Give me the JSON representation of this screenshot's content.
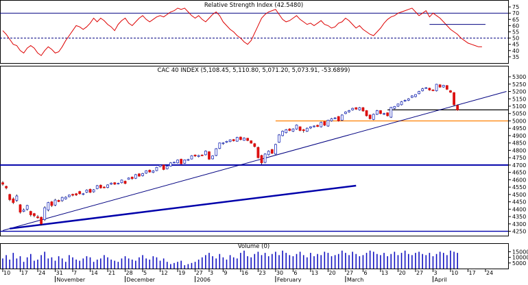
{
  "chart_data": [
    {
      "type": "line",
      "title": "Relative Strength Index (42.5480)",
      "ylim": [
        30,
        80
      ],
      "yticks": [
        35,
        40,
        45,
        50,
        55,
        60,
        65,
        70,
        75
      ],
      "reference_lines": [
        70,
        50
      ],
      "annotation_segment": {
        "from_index": 122,
        "to_index": 138,
        "y": 61
      },
      "colors": {
        "line": "#dd0000",
        "reference": "#000080",
        "annotation": "#000080"
      },
      "values": [
        56,
        53,
        49,
        45,
        44,
        40,
        38,
        42,
        44,
        42,
        38,
        36,
        40,
        43,
        41,
        38,
        39,
        43,
        48,
        52,
        56,
        60,
        59,
        57,
        59,
        62,
        66,
        63,
        66,
        64,
        61,
        59,
        56,
        61,
        64,
        66,
        62,
        60,
        63,
        66,
        68,
        65,
        63,
        65,
        67,
        68,
        67,
        69,
        71,
        72,
        74,
        73,
        74,
        71,
        68,
        66,
        68,
        65,
        63,
        66,
        69,
        71,
        68,
        63,
        60,
        57,
        55,
        52,
        50,
        47,
        45,
        48,
        54,
        60,
        66,
        69,
        71,
        72,
        73,
        69,
        65,
        63,
        64,
        66,
        68,
        65,
        63,
        61,
        62,
        60,
        62,
        64,
        61,
        60,
        58,
        59,
        62,
        63,
        66,
        64,
        61,
        58,
        60,
        57,
        55,
        53,
        52,
        55,
        58,
        62,
        65,
        67,
        68,
        70,
        71,
        72,
        73,
        74,
        71,
        68,
        70,
        72,
        67,
        70,
        68,
        66,
        63,
        60,
        57,
        55,
        53,
        50,
        48,
        46,
        45,
        44,
        43,
        43
      ]
    },
    {
      "type": "candlestick",
      "title": "CAC 40 INDEX (5,108.45, 5,110.80, 5,071.20, 5,073.91, -53.6899)",
      "ylim": [
        4220,
        5370
      ],
      "yticks": [
        4250,
        4300,
        4350,
        4400,
        4450,
        4500,
        4550,
        4600,
        4650,
        4700,
        4750,
        4800,
        4850,
        4900,
        4950,
        5000,
        5050,
        5100,
        5150,
        5200,
        5250,
        5300
      ],
      "horizontal_lines": [
        {
          "y": 4700,
          "color": "#0000aa",
          "width": 2
        },
        {
          "y": 4250,
          "color": "#0000aa",
          "width": 1.3
        },
        {
          "y": 5000,
          "color": "#ff8000",
          "width": 1.2,
          "from_index": 78
        },
        {
          "y": 5075,
          "color": "#000000",
          "width": 1.2,
          "from_index": 110
        }
      ],
      "trendlines": [
        {
          "from": [
            0,
            4255
          ],
          "to": [
            144,
            5200
          ],
          "color": "#000080",
          "width": 1
        },
        {
          "from": [
            2,
            4268
          ],
          "to": [
            101,
            4560
          ],
          "color": "#0000aa",
          "width": 2.5
        }
      ],
      "colors": {
        "up": "#2030c0",
        "down": "#dd1010",
        "wick": "#000000"
      },
      "close": [
        4570,
        4545,
        4465,
        4445,
        4490,
        4380,
        4395,
        4425,
        4362,
        4356,
        4342,
        4300,
        4410,
        4445,
        4425,
        4462,
        4452,
        4480,
        4481,
        4496,
        4495,
        4497,
        4505,
        4505,
        4530,
        4515,
        4532,
        4560,
        4545,
        4549,
        4565,
        4577,
        4570,
        4576,
        4598,
        4575,
        4612,
        4608,
        4635,
        4625,
        4642,
        4661,
        4653,
        4660,
        4684,
        4699,
        4670,
        4692,
        4715,
        4719,
        4734,
        4709,
        4735,
        4738,
        4763,
        4762,
        4765,
        4764,
        4795,
        4740,
        4762,
        4811,
        4850,
        4850,
        4861,
        4871,
        4865,
        4888,
        4873,
        4883,
        4867,
        4849,
        4826,
        4750,
        4715,
        4775,
        4794,
        4780,
        4840,
        4905,
        4930,
        4940,
        4935,
        4945,
        4972,
        4935,
        4934,
        4950,
        4960,
        4965,
        4962,
        4990,
        4971,
        5005,
        5015,
        5020,
        5000,
        5040,
        5060,
        5070,
        5085,
        5080,
        5090,
        5068,
        5035,
        5015,
        5045,
        5070,
        5050,
        5050,
        5035,
        5092,
        5098,
        5115,
        5130,
        5140,
        5150,
        5170,
        5179,
        5200,
        5218,
        5225,
        5210,
        5207,
        5249,
        5230,
        5242,
        5215,
        5195,
        5110,
        5074
      ],
      "open": [
        4580,
        4555,
        4500,
        4470,
        4460,
        4430,
        4385,
        4400,
        4385,
        4370,
        4348,
        4345,
        4330,
        4395,
        4450,
        4428,
        4460,
        4458,
        4470,
        4485,
        4501,
        4505,
        4520,
        4500,
        4515,
        4535,
        4518,
        4540,
        4563,
        4550,
        4548,
        4570,
        4580,
        4573,
        4580,
        4590,
        4603,
        4618,
        4610,
        4640,
        4628,
        4645,
        4665,
        4650,
        4662,
        4689,
        4700,
        4675,
        4693,
        4718,
        4715,
        4740,
        4712,
        4732,
        4741,
        4768,
        4758,
        4768,
        4770,
        4790,
        4742,
        4765,
        4813,
        4845,
        4855,
        4860,
        4873,
        4862,
        4890,
        4868,
        4882,
        4865,
        4845,
        4820,
        4765,
        4718,
        4770,
        4805,
        4775,
        4855,
        4900,
        4920,
        4945,
        4930,
        4945,
        4960,
        4940,
        4930,
        4952,
        4960,
        4970,
        4960,
        4995,
        4965,
        5000,
        5020,
        5030,
        5005,
        5050,
        5062,
        5075,
        5090,
        5075,
        5090,
        5070,
        5040,
        5010,
        5045,
        5070,
        5045,
        5055,
        5025,
        5085,
        5100,
        5110,
        5135,
        5140,
        5160,
        5165,
        5185,
        5205,
        5225,
        5222,
        5210,
        5205,
        5245,
        5230,
        5240,
        5205,
        5192,
        5105
      ],
      "high": [
        4590,
        4560,
        4505,
        4480,
        4500,
        4435,
        4405,
        4430,
        4390,
        4375,
        4360,
        4350,
        4420,
        4450,
        4455,
        4470,
        4465,
        4485,
        4488,
        4500,
        4506,
        4510,
        4525,
        4510,
        4535,
        4540,
        4537,
        4565,
        4568,
        4555,
        4570,
        4582,
        4584,
        4580,
        4602,
        4595,
        4616,
        4622,
        4640,
        4645,
        4647,
        4665,
        4670,
        4665,
        4688,
        4703,
        4703,
        4696,
        4720,
        4723,
        4738,
        4743,
        4738,
        4742,
        4767,
        4772,
        4770,
        4772,
        4800,
        4795,
        4766,
        4815,
        4853,
        4855,
        4865,
        4875,
        4877,
        4892,
        4894,
        4888,
        4885,
        4868,
        4850,
        4825,
        4770,
        4780,
        4800,
        4810,
        4845,
        4910,
        4935,
        4945,
        4950,
        4950,
        4976,
        4963,
        4945,
        4955,
        4964,
        4970,
        4975,
        4995,
        4998,
        5008,
        5020,
        5025,
        5033,
        5045,
        5065,
        5075,
        5090,
        5093,
        5095,
        5094,
        5073,
        5044,
        5050,
        5075,
        5073,
        5055,
        5058,
        5095,
        5101,
        5118,
        5135,
        5145,
        5155,
        5175,
        5182,
        5205,
        5225,
        5230,
        5226,
        5215,
        5252,
        5250,
        5245,
        5244,
        5210,
        5196,
        5112
      ],
      "low": [
        4560,
        4535,
        4455,
        4435,
        4450,
        4370,
        4380,
        4390,
        4350,
        4345,
        4335,
        4290,
        4320,
        4385,
        4415,
        4420,
        4448,
        4450,
        4465,
        4480,
        4488,
        4490,
        4500,
        4495,
        4510,
        4510,
        4512,
        4535,
        4540,
        4542,
        4542,
        4565,
        4565,
        4568,
        4575,
        4570,
        4600,
        4600,
        4605,
        4620,
        4622,
        4640,
        4648,
        4645,
        4658,
        4685,
        4665,
        4670,
        4690,
        4712,
        4710,
        4705,
        4708,
        4728,
        4738,
        4755,
        4752,
        4760,
        4765,
        4735,
        4738,
        4760,
        4808,
        4838,
        4850,
        4855,
        4860,
        4858,
        4868,
        4865,
        4862,
        4845,
        4820,
        4745,
        4705,
        4712,
        4765,
        4775,
        4770,
        4850,
        4895,
        4915,
        4930,
        4925,
        4940,
        4930,
        4920,
        4925,
        4945,
        4955,
        4958,
        4955,
        4965,
        4960,
        4995,
        5012,
        4995,
        5000,
        5045,
        5055,
        5070,
        5075,
        5070,
        5062,
        5030,
        5010,
        5005,
        5040,
        5045,
        5040,
        5030,
        5020,
        5080,
        5095,
        5105,
        5130,
        5135,
        5155,
        5160,
        5180,
        5200,
        5218,
        5205,
        5202,
        5200,
        5225,
        5225,
        5210,
        5190,
        5100,
        5068
      ]
    },
    {
      "type": "bar",
      "title": "Volume (0)",
      "ylim": [
        0,
        22000
      ],
      "yticks": [
        5000,
        10000,
        15000
      ],
      "colors": {
        "bars": "#1010c0"
      },
      "values": [
        9000,
        12000,
        8000,
        14000,
        9000,
        11000,
        6000,
        10000,
        13000,
        7000,
        8000,
        12000,
        15000,
        9000,
        10000,
        7000,
        11000,
        9000,
        6000,
        12000,
        10000,
        8000,
        7000,
        9000,
        11000,
        10000,
        6000,
        8000,
        9000,
        12000,
        10000,
        8000,
        7000,
        6000,
        9000,
        11000,
        9000,
        8000,
        7000,
        10000,
        12000,
        9000,
        8000,
        11000,
        10000,
        7000,
        9000,
        6000,
        4000,
        5000,
        6000,
        7000,
        3000,
        4000,
        5000,
        6000,
        8000,
        10000,
        12000,
        14000,
        11000,
        9000,
        13000,
        10000,
        8000,
        12000,
        10000,
        9000,
        14000,
        16000,
        11000,
        10000,
        13000,
        15000,
        12000,
        14000,
        11000,
        13000,
        15000,
        12000,
        16000,
        14000,
        12000,
        11000,
        13000,
        15000,
        12000,
        10000,
        14000,
        11000,
        13000,
        12000,
        15000,
        14000,
        11000,
        12000,
        13000,
        16000,
        14000,
        12000,
        15000,
        13000,
        11000,
        12000,
        14000,
        16000,
        15000,
        13000,
        12000,
        14000,
        11000,
        13000,
        15000,
        12000,
        14000,
        16000,
        13000,
        12000,
        14000,
        15000,
        13000,
        12000,
        14000,
        11000,
        13000,
        15000,
        14000,
        12000,
        16000,
        15000,
        14000
      ],
      "x_tick_labels": [
        "10",
        "17",
        "24",
        "31",
        "7",
        "14",
        "21",
        "28",
        "5",
        "12",
        "19",
        "27",
        "3",
        "9",
        "16",
        "23",
        "30",
        "6",
        "13",
        "20",
        "27",
        "6",
        "13",
        "20",
        "27",
        "3",
        "10",
        "17",
        "24"
      ],
      "x_tick_indices": [
        0,
        5,
        10,
        15,
        20,
        25,
        30,
        35,
        40,
        45,
        50,
        55,
        59,
        63,
        68,
        73,
        78,
        83,
        88,
        93,
        98,
        103,
        108,
        113,
        118,
        123,
        128,
        133,
        138
      ],
      "month_labels": [
        "November",
        "December",
        "2006",
        "February",
        "March",
        "April"
      ],
      "month_indices": [
        15,
        35,
        55,
        78,
        98,
        123
      ]
    }
  ]
}
